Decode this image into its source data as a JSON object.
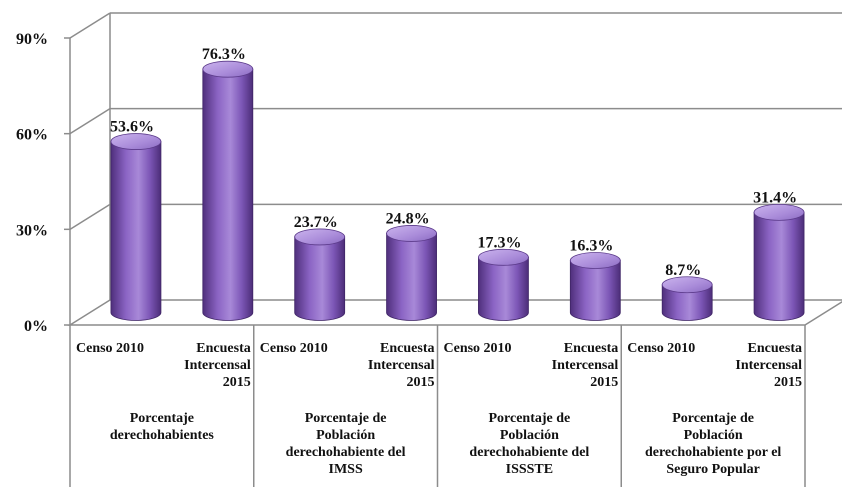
{
  "chart_data": {
    "type": "bar",
    "style": "3d-cylinder",
    "title": "",
    "ylim": [
      0,
      90
    ],
    "yticks": [
      {
        "value": 0,
        "label": "0%"
      },
      {
        "value": 30,
        "label": "30%"
      },
      {
        "value": 60,
        "label": "60%"
      },
      {
        "value": 90,
        "label": "90%"
      }
    ],
    "grid": true,
    "colors": {
      "bar": "#8860c0",
      "bar_dark": "#4f2f7c",
      "bar_light": "#b99be3",
      "grid": "#8c8c8c",
      "text": "#111111"
    },
    "groups": [
      {
        "label": "Porcentaje\nderechohabientes",
        "bars": [
          {
            "category": "Censo 2010",
            "value": 53.6,
            "value_label": "53.6%"
          },
          {
            "category": "Encuesta\nIntercensal\n2015",
            "value": 76.3,
            "value_label": "76.3%"
          }
        ]
      },
      {
        "label": "Porcentaje de\nPoblación\nderechohabiente del\nIMSS",
        "bars": [
          {
            "category": "Censo 2010",
            "value": 23.7,
            "value_label": "23.7%"
          },
          {
            "category": "Encuesta\nIntercensal\n2015",
            "value": 24.8,
            "value_label": "24.8%"
          }
        ]
      },
      {
        "label": "Porcentaje de\nPoblación\nderechohabiente del\nISSSTE",
        "bars": [
          {
            "category": "Censo 2010",
            "value": 17.3,
            "value_label": "17.3%"
          },
          {
            "category": "Encuesta\nIntercensal\n2015",
            "value": 16.3,
            "value_label": "16.3%"
          }
        ]
      },
      {
        "label": "Porcentaje de\nPoblación\nderechohabiente por el\nSeguro Popular",
        "bars": [
          {
            "category": "Censo 2010",
            "value": 8.7,
            "value_label": "8.7%"
          },
          {
            "category": "Encuesta\nIntercensal\n2015",
            "value": 31.4,
            "value_label": "31.4%"
          }
        ]
      }
    ]
  }
}
